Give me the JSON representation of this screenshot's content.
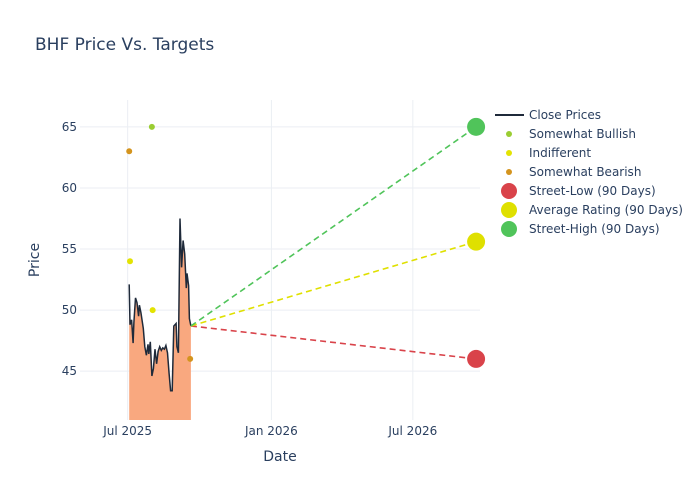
{
  "chart_data": {
    "type": "line",
    "title": "BHF Price Vs. Targets",
    "xlabel": "Date",
    "ylabel": "Price",
    "x_range": [
      "2025-05-01",
      "2026-09-25"
    ],
    "y_range": [
      41,
      67.2
    ],
    "x_ticks": [
      {
        "date": "2025-07-01",
        "label": "Jul 2025"
      },
      {
        "date": "2026-01-01",
        "label": "Jan 2026"
      },
      {
        "date": "2026-07-01",
        "label": "Jul 2026"
      }
    ],
    "y_ticks": [
      45,
      50,
      55,
      60,
      65
    ],
    "grid": true,
    "legend_position": "right",
    "close_prices": {
      "name": "Close Prices",
      "color": "#1f2a3a",
      "fill_color": "#f9a87f",
      "points": [
        [
          "2025-07-03",
          52.1
        ],
        [
          "2025-07-04",
          48.8
        ],
        [
          "2025-07-06",
          49.2
        ],
        [
          "2025-07-08",
          47.3
        ],
        [
          "2025-07-09",
          49.0
        ],
        [
          "2025-07-11",
          51.0
        ],
        [
          "2025-07-13",
          50.6
        ],
        [
          "2025-07-15",
          49.5
        ],
        [
          "2025-07-16",
          50.4
        ],
        [
          "2025-07-18",
          49.8
        ],
        [
          "2025-07-21",
          48.5
        ],
        [
          "2025-07-23",
          47.0
        ],
        [
          "2025-07-25",
          46.3
        ],
        [
          "2025-07-27",
          47.2
        ],
        [
          "2025-07-28",
          46.4
        ],
        [
          "2025-07-30",
          47.4
        ],
        [
          "2025-08-01",
          44.6
        ],
        [
          "2025-08-03",
          45.2
        ],
        [
          "2025-08-05",
          46.8
        ],
        [
          "2025-08-07",
          45.6
        ],
        [
          "2025-08-09",
          46.6
        ],
        [
          "2025-08-11",
          47.0
        ],
        [
          "2025-08-13",
          46.7
        ],
        [
          "2025-08-15",
          46.9
        ],
        [
          "2025-08-17",
          46.8
        ],
        [
          "2025-08-19",
          47.1
        ],
        [
          "2025-08-21",
          46.5
        ],
        [
          "2025-08-23",
          44.8
        ],
        [
          "2025-08-25",
          43.4
        ],
        [
          "2025-08-27",
          43.4
        ],
        [
          "2025-08-29",
          48.7
        ],
        [
          "2025-09-01",
          48.9
        ],
        [
          "2025-09-02",
          47.0
        ],
        [
          "2025-09-04",
          46.5
        ],
        [
          "2025-09-06",
          57.5
        ],
        [
          "2025-09-08",
          53.5
        ],
        [
          "2025-09-10",
          55.7
        ],
        [
          "2025-09-12",
          54.6
        ],
        [
          "2025-09-14",
          51.8
        ],
        [
          "2025-09-15",
          53.0
        ],
        [
          "2025-09-17",
          52.0
        ],
        [
          "2025-09-18",
          49.3
        ],
        [
          "2025-09-20",
          48.7
        ]
      ]
    },
    "analyst_ratings": [
      {
        "name": "Somewhat Bullish",
        "color": "#9acd32",
        "points": [
          [
            "2025-08-01",
            65
          ]
        ]
      },
      {
        "name": "Indifferent",
        "color": "#e3e302",
        "points": [
          [
            "2025-07-04",
            54
          ],
          [
            "2025-08-02",
            50
          ]
        ]
      },
      {
        "name": "Somewhat Bearish",
        "color": "#d4941e",
        "points": [
          [
            "2025-07-03",
            63
          ],
          [
            "2025-09-19",
            46
          ]
        ]
      }
    ],
    "targets": {
      "start": {
        "date": "2025-09-20",
        "price": 48.7
      },
      "end_date": "2026-09-20",
      "items": [
        {
          "name": "Street-Low (90 Days)",
          "value": 46,
          "color": "#d9434a"
        },
        {
          "name": "Average Rating (90 Days)",
          "value": 55.6,
          "color": "#dfe000"
        },
        {
          "name": "Street-High (90 Days)",
          "value": 65,
          "color": "#50c45a"
        }
      ]
    }
  }
}
